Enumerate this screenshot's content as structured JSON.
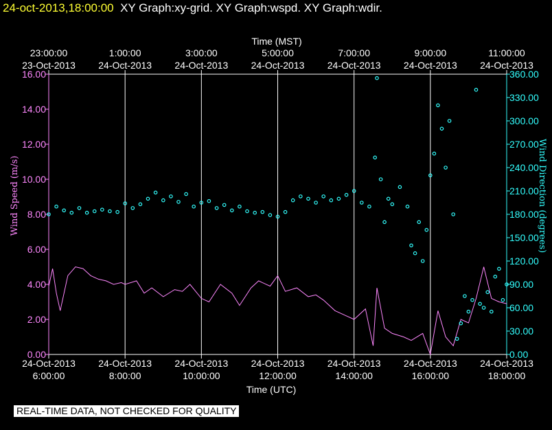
{
  "header": {
    "timestamp": "24-oct-2013,18:00:00",
    "graphs": "XY Graph:xy-grid.  XY Graph:wspd.  XY Graph:wdir."
  },
  "footer": {
    "qc_label": "REAL-TIME DATA, NOT CHECKED FOR QUALITY"
  },
  "colors": {
    "wspd": "#ff88ff",
    "wdir": "#33ffff",
    "axis_left": "#ff88ff",
    "axis_right": "#33ffff",
    "grid": "#ffffff"
  },
  "chart_data": {
    "type": "line",
    "top_axis": {
      "label": "Time (MST)",
      "ticks": [
        {
          "x": 6,
          "time": "23:00:00",
          "date": "23-Oct-2013"
        },
        {
          "x": 8,
          "time": "1:00:00",
          "date": "24-Oct-2013"
        },
        {
          "x": 10,
          "time": "3:00:00",
          "date": "24-Oct-2013"
        },
        {
          "x": 12,
          "time": "5:00:00",
          "date": "24-Oct-2013"
        },
        {
          "x": 14,
          "time": "7:00:00",
          "date": "24-Oct-2013"
        },
        {
          "x": 16,
          "time": "9:00:00",
          "date": "24-Oct-2013"
        },
        {
          "x": 18,
          "time": "11:00:00",
          "date": "24-Oct-2013"
        }
      ]
    },
    "bottom_axis": {
      "label": "Time (UTC)",
      "ticks": [
        {
          "x": 6,
          "date": "24-Oct-2013",
          "time": "6:00:00"
        },
        {
          "x": 8,
          "date": "24-Oct-2013",
          "time": "8:00:00"
        },
        {
          "x": 10,
          "date": "24-Oct-2013",
          "time": "10:00:00"
        },
        {
          "x": 12,
          "date": "24-Oct-2013",
          "time": "12:00:00"
        },
        {
          "x": 14,
          "date": "24-Oct-2013",
          "time": "14:00:00"
        },
        {
          "x": 16,
          "date": "24-Oct-2013",
          "time": "16:00:00"
        },
        {
          "x": 18,
          "date": "24-Oct-2013",
          "time": "18:00:00"
        }
      ]
    },
    "xlim": [
      6,
      18
    ],
    "y_left": {
      "label": "Wind Speed (m/s)",
      "lim": [
        0,
        16
      ],
      "ticks": [
        "0.00",
        "2.00",
        "4.00",
        "6.00",
        "8.00",
        "10.00",
        "12.00",
        "14.00",
        "16.00"
      ]
    },
    "y_right": {
      "label": "Wind Direction (degrees)",
      "lim": [
        0,
        360
      ],
      "ticks": [
        "0.00",
        "30.00",
        "60.00",
        "90.00",
        "120.00",
        "150.00",
        "180.00",
        "210.00",
        "240.00",
        "270.00",
        "300.00",
        "330.00",
        "360.00"
      ]
    },
    "grid": "vertical",
    "series": [
      {
        "name": "wspd",
        "style": "line",
        "axis": "left",
        "x": [
          6.0,
          6.1,
          6.2,
          6.3,
          6.5,
          6.7,
          6.9,
          7.1,
          7.3,
          7.5,
          7.7,
          7.9,
          8.0,
          8.3,
          8.5,
          8.7,
          9.0,
          9.3,
          9.5,
          9.7,
          10.0,
          10.2,
          10.5,
          10.8,
          11.0,
          11.3,
          11.5,
          11.8,
          12.0,
          12.2,
          12.5,
          12.8,
          13.0,
          13.2,
          13.5,
          13.8,
          14.0,
          14.3,
          14.5,
          14.6,
          14.8,
          15.0,
          15.3,
          15.5,
          15.8,
          16.0,
          16.2,
          16.4,
          16.6,
          16.8,
          17.0,
          17.2,
          17.4,
          17.6,
          17.8,
          18.0
        ],
        "y": [
          3.9,
          4.9,
          3.5,
          2.5,
          4.5,
          5.0,
          4.9,
          4.5,
          4.3,
          4.2,
          4.0,
          4.1,
          4.0,
          4.2,
          3.5,
          3.8,
          3.3,
          3.7,
          3.6,
          4.0,
          3.2,
          3.0,
          4.0,
          3.5,
          2.8,
          3.8,
          4.2,
          3.9,
          4.5,
          3.6,
          3.8,
          3.3,
          3.4,
          3.1,
          2.5,
          2.2,
          2.0,
          2.6,
          0.5,
          3.8,
          1.5,
          1.2,
          1.0,
          0.8,
          1.2,
          0.0,
          2.5,
          1.0,
          0.5,
          2.0,
          1.8,
          3.2,
          5.0,
          3.2,
          3.0,
          2.9
        ]
      },
      {
        "name": "wdir",
        "style": "points",
        "axis": "right",
        "x": [
          6.0,
          6.2,
          6.4,
          6.6,
          6.8,
          7.0,
          7.2,
          7.4,
          7.6,
          7.8,
          8.0,
          8.2,
          8.4,
          8.6,
          8.8,
          9.0,
          9.2,
          9.4,
          9.6,
          9.8,
          10.0,
          10.2,
          10.4,
          10.6,
          10.8,
          11.0,
          11.2,
          11.4,
          11.6,
          11.8,
          12.0,
          12.2,
          12.4,
          12.6,
          12.8,
          13.0,
          13.2,
          13.4,
          13.6,
          13.8,
          14.0,
          14.2,
          14.4,
          14.55,
          14.6,
          14.7,
          14.8,
          14.9,
          15.0,
          15.2,
          15.4,
          15.5,
          15.6,
          15.7,
          15.8,
          15.9,
          16.0,
          16.1,
          16.2,
          16.3,
          16.4,
          16.5,
          16.6,
          16.7,
          16.8,
          16.9,
          17.0,
          17.1,
          17.2,
          17.3,
          17.4,
          17.5,
          17.6,
          17.7,
          17.8,
          17.9,
          18.0
        ],
        "y": [
          180,
          190,
          185,
          182,
          188,
          182,
          184,
          186,
          184,
          183,
          194,
          188,
          193,
          200,
          208,
          198,
          203,
          196,
          206,
          190,
          195,
          197,
          188,
          192,
          185,
          190,
          184,
          182,
          183,
          179,
          177,
          183,
          198,
          203,
          200,
          195,
          203,
          198,
          200,
          205,
          210,
          195,
          190,
          253,
          355,
          225,
          170,
          200,
          193,
          215,
          190,
          140,
          130,
          170,
          120,
          160,
          230,
          258,
          320,
          290,
          240,
          300,
          180,
          20,
          40,
          75,
          55,
          70,
          340,
          65,
          60,
          80,
          55,
          100,
          110,
          70,
          90
        ]
      }
    ]
  }
}
